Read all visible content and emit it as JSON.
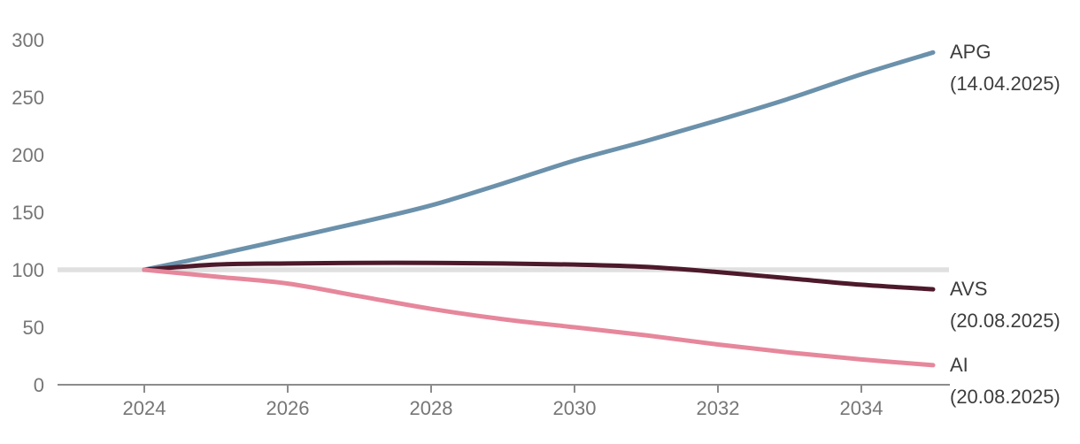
{
  "chart_data": {
    "type": "line",
    "title": "",
    "xlabel": "",
    "ylabel": "",
    "x": [
      2024,
      2025,
      2026,
      2027,
      2028,
      2029,
      2030,
      2031,
      2032,
      2033,
      2034,
      2035
    ],
    "x_ticks": [
      2024,
      2026,
      2028,
      2030,
      2032,
      2034
    ],
    "y_ticks": [
      0,
      50,
      100,
      150,
      200,
      250,
      300
    ],
    "ylim": [
      0,
      300
    ],
    "grid": false,
    "baseline_reference": {
      "value": 100,
      "color": "#e0e0e0"
    },
    "series": [
      {
        "name": "APG",
        "label": "APG",
        "sublabel": "(14.04.2025)",
        "color": "#6b91ab",
        "values": [
          100,
          113,
          127,
          141,
          156,
          175,
          195,
          212,
          230,
          249,
          270,
          289
        ]
      },
      {
        "name": "AVS",
        "label": "AVS",
        "sublabel": "(20.08.2025)",
        "color": "#4d1a2b",
        "values": [
          100,
          104.5,
          105.5,
          106,
          106,
          105.5,
          104.5,
          102.5,
          98,
          92.5,
          87,
          83
        ]
      },
      {
        "name": "AI",
        "label": "AI",
        "sublabel": "(20.08.2025)",
        "color": "#e6879c",
        "values": [
          100,
          94,
          88,
          77,
          66,
          57,
          50,
          43,
          35,
          28,
          22,
          17
        ]
      }
    ],
    "legend_position": "right-of-line-end",
    "colors": {
      "axis": "#8c8c8c",
      "tick_label": "#767676",
      "series_label": "#3d3d3d",
      "background": "#ffffff"
    }
  }
}
